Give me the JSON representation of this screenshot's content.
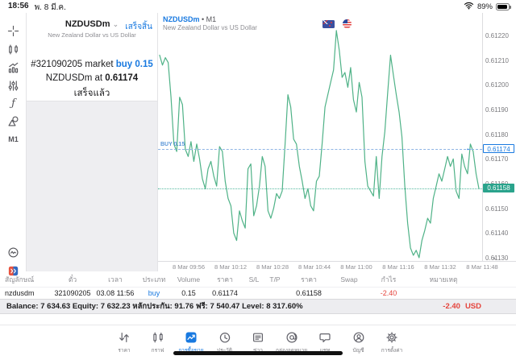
{
  "status_bar": {
    "time": "18:56",
    "date": "พ. 8 มี.ค.",
    "battery_percent": "89%"
  },
  "sidebar": {
    "timeframe_label": "M1",
    "function_label": "ƒ"
  },
  "order_dialog": {
    "symbol": "NZDUSDm",
    "description": "New Zealand Dollar vs US Dollar",
    "done_button": "เสร็จสิ้น",
    "line1_prefix": "#321090205 market ",
    "line1_highlight": "buy 0.15",
    "line2_prefix": "NZDUSDm at ",
    "line2_value": "0.61174",
    "line3": "เสร็จแล้ว"
  },
  "chart": {
    "symbol": "NZDUSDm",
    "timeframe_label": "• M1",
    "description": "New Zealand Dollar vs US Dollar",
    "buy_line_label": "BUY 0.15",
    "buy_arrow": "←",
    "ask_marker": "0.61174",
    "bid_marker": "0.61158",
    "axis_triangle": "▲"
  },
  "chart_data": {
    "type": "line",
    "title": "NZDUSDm M1 line chart",
    "x_labels": [
      "8 Mar 09:56",
      "8 Mar 10:12",
      "8 Mar 10:28",
      "8 Mar 10:44",
      "8 Mar 11:00",
      "8 Mar 11:16",
      "8 Mar 11:32",
      "8 Mar 11:48"
    ],
    "y_ticks": [
      "0.61220",
      "0.61210",
      "0.61200",
      "0.61190",
      "0.61180",
      "0.61170",
      "0.61160",
      "0.61150",
      "0.61140",
      "0.61130"
    ],
    "ylim": [
      0.61125,
      0.61225
    ],
    "buy_price": 0.61174,
    "current_price": 0.61158,
    "line_color": "#4fb287",
    "series": [
      {
        "name": "NZDUSDm bid",
        "values": [
          0.61212,
          0.61208,
          0.61211,
          0.61209,
          0.61195,
          0.61176,
          0.61173,
          0.61195,
          0.61192,
          0.61174,
          0.61171,
          0.61177,
          0.61169,
          0.61176,
          0.6117,
          0.61162,
          0.61158,
          0.61166,
          0.61169,
          0.61163,
          0.61159,
          0.61175,
          0.61173,
          0.61161,
          0.61154,
          0.61151,
          0.6114,
          0.61137,
          0.61149,
          0.61145,
          0.61142,
          0.61166,
          0.61168,
          0.61147,
          0.61151,
          0.61159,
          0.61171,
          0.61167,
          0.61149,
          0.61146,
          0.6115,
          0.61156,
          0.61154,
          0.61157,
          0.61176,
          0.61196,
          0.61191,
          0.61178,
          0.61176,
          0.61167,
          0.61161,
          0.61154,
          0.61158,
          0.61151,
          0.61149,
          0.61161,
          0.61163,
          0.61176,
          0.61191,
          0.61196,
          0.61201,
          0.61206,
          0.61222,
          0.61214,
          0.61203,
          0.61205,
          0.61199,
          0.61207,
          0.61194,
          0.61189,
          0.61201,
          0.61195,
          0.61169,
          0.61159,
          0.61157,
          0.61155,
          0.61171,
          0.61154,
          0.61171,
          0.61181,
          0.61197,
          0.61212,
          0.61204,
          0.61196,
          0.61189,
          0.61179,
          0.61159,
          0.61144,
          0.61134,
          0.61131,
          0.61133,
          0.6113,
          0.61137,
          0.61141,
          0.61146,
          0.61144,
          0.61154,
          0.61159,
          0.61164,
          0.61161,
          0.61166,
          0.61171,
          0.61167,
          0.6117,
          0.61157,
          0.61154,
          0.61172,
          0.61167,
          0.61164,
          0.61176,
          0.61173,
          0.61164,
          0.61158
        ]
      }
    ]
  },
  "positions_table": {
    "headers": [
      "สัญลักษณ์",
      "ตั๋ว",
      "เวลา",
      "ประเภท",
      "Volume",
      "ราคา",
      "S/L",
      "T/P",
      "ราคา",
      "Swap",
      "กำไร",
      "หมายเหตุ"
    ],
    "row": {
      "symbol": "nzdusdm",
      "ticket": "321090205",
      "time": "03.08 11:56",
      "type": "buy",
      "volume": "0.15",
      "price": "0.61174",
      "sl": "",
      "tp": "",
      "price2": "0.61158",
      "swap": "",
      "profit": "-2.40",
      "note": ""
    }
  },
  "account_bar": {
    "summary": "Balance: 7 634.63 Equity: 7 632.23 หลักประกัน: 91.76 ฟรี: 7 540.47 Level: 8 317.60%",
    "profit": "-2.40",
    "currency": "USD"
  },
  "tab_bar": {
    "items": [
      {
        "icon": "quotes-icon",
        "label": "ราคา",
        "active": false
      },
      {
        "icon": "chart-icon",
        "label": "กราฟ",
        "active": false
      },
      {
        "icon": "trade-icon",
        "label": "การซื้อขาย",
        "active": true
      },
      {
        "icon": "history-icon",
        "label": "ประวัติ",
        "active": false
      },
      {
        "icon": "news-icon",
        "label": "ข่าว",
        "active": false
      },
      {
        "icon": "mailbox-icon",
        "label": "กล่องจดหมาย",
        "active": false
      },
      {
        "icon": "chat-icon",
        "label": "แชท",
        "active": false
      },
      {
        "icon": "account-icon",
        "label": "บัญชี",
        "active": false
      },
      {
        "icon": "settings-icon",
        "label": "การตั้งค่า",
        "active": false
      }
    ]
  },
  "colors": {
    "accent": "#1879e0",
    "chart_line": "#4fb287",
    "bid_marker": "#2aa38c",
    "loss_red": "#e5443c"
  }
}
